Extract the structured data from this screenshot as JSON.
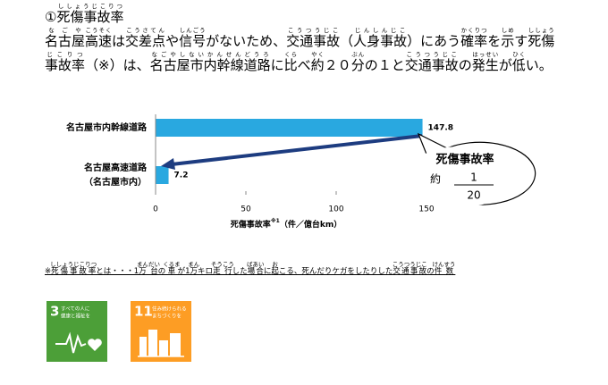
{
  "heading": [
    {
      "t": "①"
    },
    {
      "t": "死傷事故率",
      "r": "ししょうじこりつ"
    }
  ],
  "intro": [
    [
      {
        "t": "名古屋",
        "r": "なごや"
      },
      {
        "t": "高速",
        "r": "こうそく"
      },
      {
        "t": "は"
      },
      {
        "t": "交差点",
        "r": "こうさてん"
      },
      {
        "t": "や"
      },
      {
        "t": "信号",
        "r": "しんごう"
      },
      {
        "t": "がないため、"
      },
      {
        "t": "交通事故",
        "r": "こうつうじこ"
      },
      {
        "t": "（"
      },
      {
        "t": "人身事故",
        "r": "じんしんじこ"
      },
      {
        "t": "）にあう"
      },
      {
        "t": "確率",
        "r": "かくりつ"
      },
      {
        "t": "を"
      },
      {
        "t": "示",
        "r": "しめ"
      },
      {
        "t": "す"
      },
      {
        "t": "死傷",
        "r": "ししょう"
      }
    ],
    [
      {
        "t": "事故率",
        "r": "じこりつ"
      },
      {
        "t": "（※）は、"
      },
      {
        "t": "名古屋市内幹線道路",
        "r": "なごやしないかんせんどうろ"
      },
      {
        "t": "に"
      },
      {
        "t": "比",
        "r": "くら"
      },
      {
        "t": "べ"
      },
      {
        "t": "約",
        "r": "やく"
      },
      {
        "t": "２０"
      },
      {
        "t": "分",
        "r": "ぶん"
      },
      {
        "t": "の１と"
      },
      {
        "t": "交通事故",
        "r": "こうつうじこ"
      },
      {
        "t": "の"
      },
      {
        "t": "発生",
        "r": "はっせい"
      },
      {
        "t": "が"
      },
      {
        "t": "低",
        "r": "ひく"
      },
      {
        "t": "い。"
      }
    ]
  ],
  "chart_data": {
    "type": "bar",
    "orientation": "horizontal",
    "categories": [
      [
        "名古屋市内幹線道路"
      ],
      [
        "名古屋高速道路",
        "（名古屋市内）"
      ]
    ],
    "values": [
      147.8,
      7.2
    ],
    "color": "#29a8e0",
    "xlim": [
      0,
      150
    ],
    "xticks": [
      0,
      50,
      100,
      150
    ],
    "x_label": {
      "text": "死傷事故率",
      "superscript": "※1",
      "unit": "（件／億台km）"
    },
    "annotation": {
      "title": "死傷事故率",
      "prefix": "約",
      "numerator": "1",
      "denominator": "20"
    },
    "arrow_color": "#1d3c80"
  },
  "footnote": [
    {
      "t": "※"
    },
    {
      "t": "死傷事故率",
      "r": "ししょうじこりつ"
    },
    {
      "t": "とは・・・1"
    },
    {
      "t": "万台",
      "r": "まんだい"
    },
    {
      "t": "の"
    },
    {
      "t": "車",
      "r": "くるま"
    },
    {
      "t": "が1"
    },
    {
      "t": "万",
      "r": "まん"
    },
    {
      "t": "キロ"
    },
    {
      "t": "走行",
      "r": "そうこう"
    },
    {
      "t": "した"
    },
    {
      "t": "場合",
      "r": "ばあい"
    },
    {
      "t": "に"
    },
    {
      "t": "起",
      "r": "お"
    },
    {
      "t": "こる、死んだりケガをしたりした"
    },
    {
      "t": "交通事故",
      "r": "こうつうじこ"
    },
    {
      "t": "の"
    },
    {
      "t": "件数",
      "r": "けんすう"
    }
  ],
  "sdg_icons": [
    {
      "number": "3",
      "label": [
        "すべての人に",
        "健康と福祉を"
      ],
      "color": "#4c9f38"
    },
    {
      "number": "11",
      "label": [
        "住み続けられる",
        "まちづくりを"
      ],
      "color": "#fd9d24"
    }
  ]
}
